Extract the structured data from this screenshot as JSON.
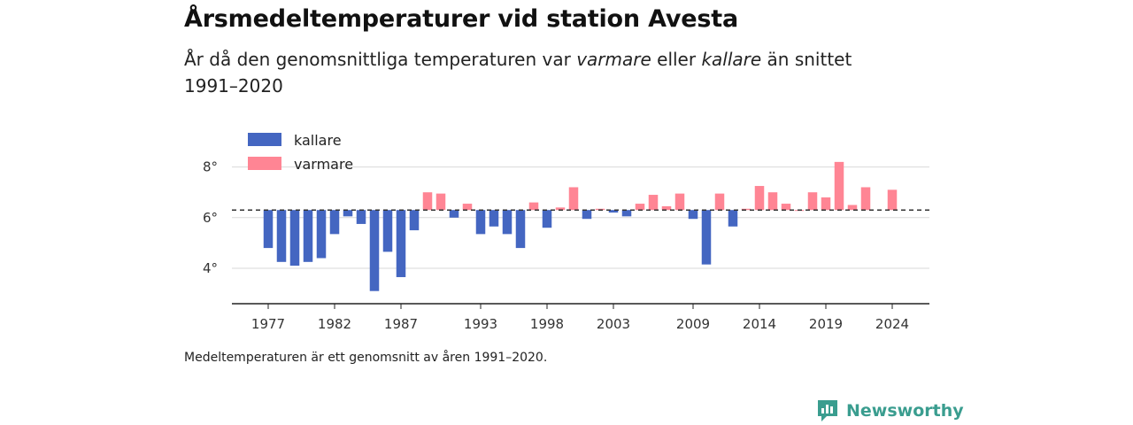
{
  "header": {
    "title": "Årsmedeltemperaturer vid station Avesta",
    "subtitle_pre": "År då den genomsnittliga temperaturen var ",
    "subtitle_warm": "varmare",
    "subtitle_mid": " eller ",
    "subtitle_cold": "kallare",
    "subtitle_post": " än snittet 1991–2020"
  },
  "footer": {
    "note": "Medeltemperaturen är ett genomsnitt av åren 1991–2020.",
    "brand": "Newsworthy"
  },
  "chart_data": {
    "type": "bar",
    "baseline": 6.3,
    "ylim": [
      2.6,
      9.0
    ],
    "yticks": [
      4,
      6,
      8
    ],
    "ytick_labels": [
      "4°",
      "6°",
      "8°"
    ],
    "xticks": [
      1977,
      1982,
      1987,
      1993,
      1998,
      2003,
      2009,
      2014,
      2019,
      2024
    ],
    "grid": true,
    "legend_position": "top-left",
    "legend": [
      {
        "key": "kallare",
        "label": "kallare",
        "color": "#4466c1"
      },
      {
        "key": "varmare",
        "label": "varmare",
        "color": "#ff8594"
      }
    ],
    "colors": {
      "kallare": "#4466c1",
      "varmare": "#ff8594"
    },
    "years": [
      1977,
      1978,
      1979,
      1980,
      1981,
      1982,
      1983,
      1984,
      1985,
      1986,
      1987,
      1988,
      1989,
      1990,
      1991,
      1992,
      1993,
      1994,
      1995,
      1996,
      1997,
      1998,
      1999,
      2000,
      2001,
      2002,
      2003,
      2004,
      2005,
      2006,
      2007,
      2008,
      2009,
      2010,
      2011,
      2012,
      2013,
      2014,
      2015,
      2016,
      2017,
      2018,
      2019,
      2020,
      2021,
      2022,
      2023,
      2024
    ],
    "values": [
      4.8,
      4.25,
      4.1,
      4.25,
      4.4,
      5.35,
      6.05,
      5.75,
      3.1,
      4.65,
      3.65,
      5.5,
      7.0,
      6.95,
      6.0,
      6.55,
      5.35,
      5.65,
      5.35,
      4.8,
      6.6,
      5.6,
      6.4,
      7.2,
      5.95,
      6.35,
      6.2,
      6.05,
      6.55,
      6.9,
      6.45,
      6.95,
      5.95,
      4.15,
      6.95,
      5.65,
      6.35,
      7.25,
      7.0,
      6.55,
      6.3,
      7.0,
      6.8,
      8.2,
      6.5,
      7.2,
      null,
      7.1
    ]
  }
}
